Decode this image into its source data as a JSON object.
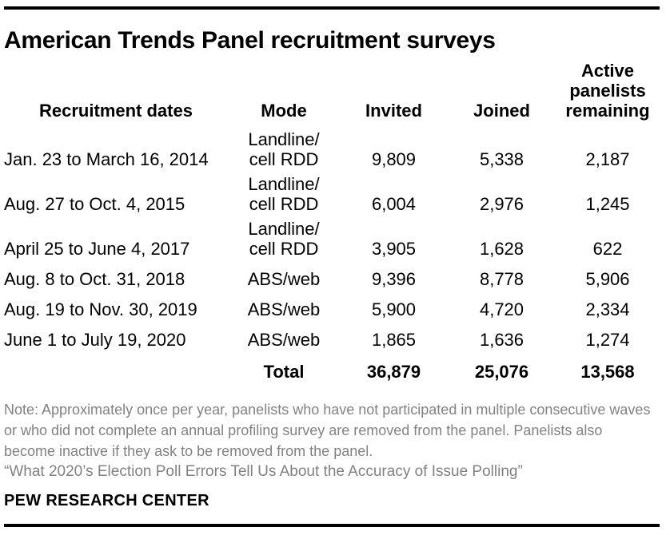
{
  "title": "American Trends Panel recruitment surveys",
  "table": {
    "headers": [
      "Recruitment dates",
      "Mode",
      "Invited",
      "Joined",
      "Active panelists remaining"
    ],
    "rows": [
      {
        "date": "Jan. 23 to March 16, 2014",
        "mode": "Landline/\ncell RDD",
        "invited": "9,809",
        "joined": "5,338",
        "remaining": "2,187"
      },
      {
        "date": "Aug. 27 to Oct. 4, 2015",
        "mode": "Landline/\ncell RDD",
        "invited": "6,004",
        "joined": "2,976",
        "remaining": "1,245"
      },
      {
        "date": "April 25 to June 4, 2017",
        "mode": "Landline/\ncell RDD",
        "invited": "3,905",
        "joined": "1,628",
        "remaining": "622"
      },
      {
        "date": "Aug. 8 to Oct. 31, 2018",
        "mode": "ABS/web",
        "invited": "9,396",
        "joined": "8,778",
        "remaining": "5,906"
      },
      {
        "date": "Aug. 19 to Nov. 30, 2019",
        "mode": "ABS/web",
        "invited": "5,900",
        "joined": "4,720",
        "remaining": "2,334"
      },
      {
        "date": "June 1 to July 19, 2020",
        "mode": "ABS/web",
        "invited": "1,865",
        "joined": "1,636",
        "remaining": "1,274"
      }
    ],
    "total": {
      "label": "Total",
      "invited": "36,879",
      "joined": "25,076",
      "remaining": "13,568"
    }
  },
  "note": "Note: Approximately once per year, panelists who have not participated in multiple consecutive waves or who did not complete an annual profiling survey are removed from the panel. Panelists also become inactive if they ask to be removed from the panel.",
  "source": "“What 2020’s Election Poll Errors Tell Us About the Accuracy of Issue Polling”",
  "footer": "PEW RESEARCH CENTER",
  "colors": {
    "text": "#000000",
    "note_gray": "#828282",
    "rule": "#000000",
    "background": "#ffffff"
  },
  "chart_data": {
    "type": "table",
    "title": "American Trends Panel recruitment surveys",
    "columns": [
      "Recruitment dates",
      "Mode",
      "Invited",
      "Joined",
      "Active panelists remaining"
    ],
    "rows": [
      [
        "Jan. 23 to March 16, 2014",
        "Landline/cell RDD",
        9809,
        5338,
        2187
      ],
      [
        "Aug. 27 to Oct. 4, 2015",
        "Landline/cell RDD",
        6004,
        2976,
        1245
      ],
      [
        "April 25 to June 4, 2017",
        "Landline/cell RDD",
        3905,
        1628,
        622
      ],
      [
        "Aug. 8 to Oct. 31, 2018",
        "ABS/web",
        9396,
        8778,
        5906
      ],
      [
        "Aug. 19 to Nov. 30, 2019",
        "ABS/web",
        5900,
        4720,
        2334
      ],
      [
        "June 1 to July 19, 2020",
        "ABS/web",
        1865,
        1636,
        1274
      ]
    ],
    "total_row": [
      "",
      "Total",
      36879,
      25076,
      13568
    ],
    "note": "Note: Approximately once per year, panelists who have not participated in multiple consecutive waves or who did not complete an annual profiling survey are removed from the panel. Panelists also become inactive if they ask to be removed from the panel.",
    "source_line": "“What 2020’s Election Poll Errors Tell Us About the Accuracy of Issue Polling”",
    "branding": "PEW RESEARCH CENTER"
  }
}
